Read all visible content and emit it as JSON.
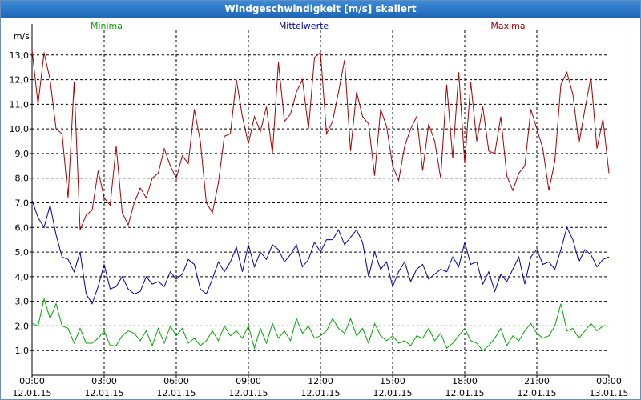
{
  "window": {
    "title": "Windgeschwindigkeit [m/s] skaliert"
  },
  "chart_data": {
    "type": "line",
    "title": "Windgeschwindigkeit [m/s] skaliert",
    "ylabel": "m/s",
    "xlabel": "",
    "ylim": [
      0.0,
      14.0
    ],
    "xlim": [
      0,
      24
    ],
    "grid": true,
    "y_ticks": [
      {
        "value": 1,
        "label": "1,0"
      },
      {
        "value": 2,
        "label": "2,0"
      },
      {
        "value": 3,
        "label": "3,0"
      },
      {
        "value": 4,
        "label": "4,0"
      },
      {
        "value": 5,
        "label": "5,0"
      },
      {
        "value": 6,
        "label": "6,0"
      },
      {
        "value": 7,
        "label": "7,0"
      },
      {
        "value": 8,
        "label": "8,0"
      },
      {
        "value": 9,
        "label": "9,0"
      },
      {
        "value": 10,
        "label": "10,0"
      },
      {
        "value": 11,
        "label": "11,0"
      },
      {
        "value": 12,
        "label": "12,0"
      },
      {
        "value": 13,
        "label": "13,0"
      }
    ],
    "x_ticks": [
      {
        "value": 0,
        "time": "00:00",
        "date": "12.01.15"
      },
      {
        "value": 3,
        "time": "03:00",
        "date": "12.01.15"
      },
      {
        "value": 6,
        "time": "06:00",
        "date": "12.01.15"
      },
      {
        "value": 9,
        "time": "09:00",
        "date": "12.01.15"
      },
      {
        "value": 12,
        "time": "12:00",
        "date": "12.01.15"
      },
      {
        "value": 15,
        "time": "15:00",
        "date": "12.01.15"
      },
      {
        "value": 18,
        "time": "18:00",
        "date": "12.01.15"
      },
      {
        "value": 21,
        "time": "21:00",
        "date": "12.01.15"
      },
      {
        "value": 24,
        "time": "00:00",
        "date": "13.01.15"
      }
    ],
    "series": [
      {
        "name": "Minima",
        "color": "#00aa00",
        "legend_pos": "left",
        "x": [
          0,
          0.25,
          0.5,
          0.75,
          1,
          1.25,
          1.5,
          1.75,
          2,
          2.25,
          2.5,
          2.75,
          3,
          3.25,
          3.5,
          3.75,
          4,
          4.25,
          4.5,
          4.75,
          5,
          5.25,
          5.5,
          5.75,
          6,
          6.25,
          6.5,
          6.75,
          7,
          7.25,
          7.5,
          7.75,
          8,
          8.25,
          8.5,
          8.75,
          9,
          9.25,
          9.5,
          9.75,
          10,
          10.25,
          10.5,
          10.75,
          11,
          11.25,
          11.5,
          11.75,
          12,
          12.25,
          12.5,
          12.75,
          13,
          13.25,
          13.5,
          13.75,
          14,
          14.25,
          14.5,
          14.75,
          15,
          15.25,
          15.5,
          15.75,
          16,
          16.25,
          16.5,
          16.75,
          17,
          17.25,
          17.5,
          17.75,
          18,
          18.25,
          18.5,
          18.75,
          19,
          19.25,
          19.5,
          19.75,
          20,
          20.25,
          20.5,
          20.75,
          21,
          21.25,
          21.5,
          21.75,
          22,
          22.25,
          22.5,
          22.75,
          23,
          23.25,
          23.5,
          23.75,
          24
        ],
        "values": [
          2.1,
          2.0,
          3.1,
          2.3,
          2.9,
          2.0,
          1.9,
          1.3,
          1.9,
          1.3,
          1.3,
          1.5,
          1.8,
          1.2,
          1.2,
          1.6,
          1.8,
          1.7,
          1.4,
          1.8,
          1.2,
          1.9,
          1.3,
          2.0,
          1.6,
          1.9,
          1.3,
          1.5,
          1.2,
          1.4,
          1.8,
          1.4,
          2.0,
          1.6,
          1.8,
          1.5,
          2.0,
          1.1,
          1.9,
          1.3,
          2.1,
          1.5,
          1.8,
          1.4,
          2.3,
          1.7,
          2.0,
          1.5,
          1.6,
          1.8,
          2.3,
          1.9,
          1.7,
          2.3,
          1.6,
          1.9,
          1.3,
          2.1,
          1.6,
          1.4,
          1.6,
          1.3,
          1.4,
          1.2,
          1.6,
          1.5,
          1.9,
          1.4,
          1.7,
          1.1,
          1.3,
          1.6,
          1.9,
          1.4,
          1.3,
          1.0,
          1.2,
          1.5,
          1.9,
          1.2,
          1.6,
          1.4,
          1.8,
          2.1,
          1.7,
          1.5,
          1.6,
          2.0,
          2.9,
          1.8,
          1.9,
          1.5,
          1.8,
          2.1,
          1.8,
          2.0,
          2.0
        ]
      },
      {
        "name": "Mittelwerte",
        "color": "#0000aa",
        "legend_pos": "center",
        "x": [
          0,
          0.25,
          0.5,
          0.75,
          1,
          1.25,
          1.5,
          1.75,
          2,
          2.25,
          2.5,
          2.75,
          3,
          3.25,
          3.5,
          3.75,
          4,
          4.25,
          4.5,
          4.75,
          5,
          5.25,
          5.5,
          5.75,
          6,
          6.25,
          6.5,
          6.75,
          7,
          7.25,
          7.5,
          7.75,
          8,
          8.25,
          8.5,
          8.75,
          9,
          9.25,
          9.5,
          9.75,
          10,
          10.25,
          10.5,
          10.75,
          11,
          11.25,
          11.5,
          11.75,
          12,
          12.25,
          12.5,
          12.75,
          13,
          13.25,
          13.5,
          13.75,
          14,
          14.25,
          14.5,
          14.75,
          15,
          15.25,
          15.5,
          15.75,
          16,
          16.25,
          16.5,
          16.75,
          17,
          17.25,
          17.5,
          17.75,
          18,
          18.25,
          18.5,
          18.75,
          19,
          19.25,
          19.5,
          19.75,
          20,
          20.25,
          20.5,
          20.75,
          21,
          21.25,
          21.5,
          21.75,
          22,
          22.25,
          22.5,
          22.75,
          23,
          23.25,
          23.5,
          23.75,
          24
        ],
        "values": [
          7.1,
          6.4,
          6.0,
          6.9,
          5.7,
          4.8,
          4.7,
          4.2,
          5.0,
          3.3,
          2.9,
          3.6,
          4.5,
          3.5,
          3.6,
          4.0,
          3.5,
          3.3,
          3.4,
          4.0,
          3.7,
          3.8,
          3.6,
          4.2,
          3.9,
          4.1,
          4.7,
          4.5,
          3.5,
          3.3,
          3.9,
          4.6,
          4.2,
          4.6,
          5.2,
          4.2,
          5.3,
          4.4,
          5.0,
          4.7,
          5.3,
          5.1,
          4.6,
          4.9,
          5.3,
          4.4,
          4.7,
          5.4,
          5.0,
          5.5,
          5.5,
          5.9,
          5.3,
          5.6,
          5.9,
          5.4,
          4.0,
          5.0,
          4.3,
          4.6,
          3.6,
          4.2,
          4.6,
          3.8,
          4.3,
          4.5,
          3.9,
          4.1,
          4.3,
          4.2,
          4.8,
          4.4,
          5.4,
          4.5,
          4.6,
          3.7,
          4.2,
          3.4,
          4.1,
          3.8,
          4.3,
          4.8,
          3.7,
          4.8,
          5.1,
          4.5,
          4.6,
          4.3,
          5.1,
          6.0,
          5.5,
          4.6,
          5.1,
          4.9,
          4.4,
          4.7,
          4.8
        ]
      },
      {
        "name": "Maxima",
        "color": "#aa0000",
        "legend_pos": "right",
        "x": [
          0,
          0.25,
          0.5,
          0.75,
          1,
          1.25,
          1.5,
          1.75,
          2,
          2.25,
          2.5,
          2.75,
          3,
          3.25,
          3.5,
          3.75,
          4,
          4.25,
          4.5,
          4.75,
          5,
          5.25,
          5.5,
          5.75,
          6,
          6.25,
          6.5,
          6.75,
          7,
          7.25,
          7.5,
          7.75,
          8,
          8.25,
          8.5,
          8.75,
          9,
          9.25,
          9.5,
          9.75,
          10,
          10.25,
          10.5,
          10.75,
          11,
          11.25,
          11.5,
          11.75,
          12,
          12.25,
          12.5,
          12.75,
          13,
          13.25,
          13.5,
          13.75,
          14,
          14.25,
          14.5,
          14.75,
          15,
          15.25,
          15.5,
          15.75,
          16,
          16.25,
          16.5,
          16.75,
          17,
          17.25,
          17.5,
          17.75,
          18,
          18.25,
          18.5,
          18.75,
          19,
          19.25,
          19.5,
          19.75,
          20,
          20.25,
          20.5,
          20.75,
          21,
          21.25,
          21.5,
          21.75,
          22,
          22.25,
          22.5,
          22.75,
          23,
          23.25,
          23.5,
          23.75,
          24
        ],
        "values": [
          13.2,
          11.0,
          13.1,
          12.0,
          10.0,
          9.8,
          7.2,
          11.9,
          5.9,
          6.5,
          6.7,
          8.3,
          7.2,
          6.9,
          9.3,
          6.6,
          6.1,
          7.0,
          7.6,
          7.2,
          8.0,
          8.2,
          9.2,
          8.5,
          8.0,
          8.9,
          8.6,
          10.8,
          9.5,
          7.0,
          6.6,
          7.8,
          9.7,
          9.8,
          12.0,
          10.5,
          9.4,
          10.5,
          9.9,
          10.9,
          9.0,
          12.7,
          10.3,
          10.6,
          11.5,
          12.0,
          10.0,
          12.9,
          13.1,
          9.8,
          10.3,
          11.5,
          12.8,
          9.1,
          11.5,
          10.5,
          10.2,
          8.1,
          10.8,
          10.1,
          8.5,
          7.9,
          9.3,
          10.0,
          10.5,
          8.3,
          10.2,
          9.5,
          8.0,
          11.8,
          8.8,
          12.3,
          8.6,
          11.9,
          9.5,
          10.9,
          9.1,
          9.0,
          10.5,
          8.1,
          7.5,
          8.2,
          8.5,
          10.8,
          10.0,
          9.2,
          7.5,
          8.7,
          11.8,
          12.3,
          11.4,
          9.4,
          10.8,
          12.1,
          9.2,
          10.4,
          8.2
        ]
      }
    ]
  }
}
